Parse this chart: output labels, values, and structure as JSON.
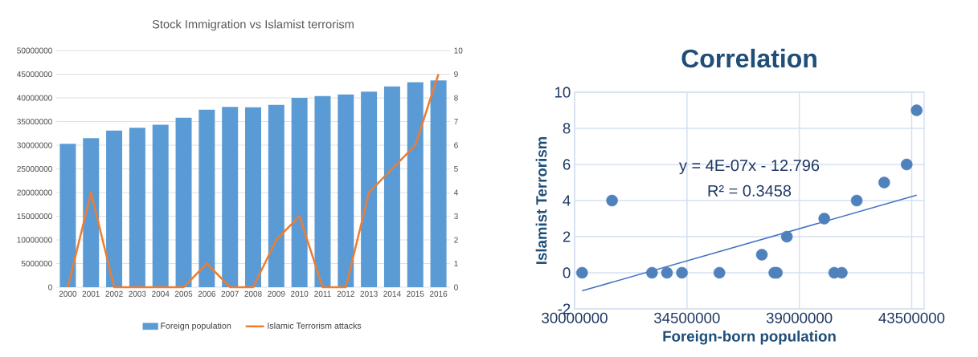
{
  "chart_data": [
    {
      "type": "bar",
      "title": "Stock Immigration vs Islamist terrorism",
      "categories": [
        "2000",
        "2001",
        "2002",
        "2003",
        "2004",
        "2005",
        "2006",
        "2007",
        "2008",
        "2009",
        "2010",
        "2011",
        "2012",
        "2013",
        "2014",
        "2015",
        "2016"
      ],
      "series": [
        {
          "name": "Foreign population",
          "color": "#5b9bd5",
          "values": [
            30300000,
            31500000,
            33100000,
            33700000,
            34300000,
            35800000,
            37500000,
            38100000,
            38000000,
            38500000,
            40000000,
            40400000,
            40700000,
            41300000,
            42400000,
            43300000,
            43700000
          ]
        },
        {
          "name": "Islamic Terrorism attacks",
          "type": "line",
          "axis": "y2",
          "color": "#ed7d31",
          "values": [
            0,
            4,
            0,
            0,
            0,
            0,
            1,
            0,
            0,
            2,
            3,
            0,
            0,
            4,
            5,
            6,
            9
          ]
        }
      ],
      "ylim": [
        0,
        50000000
      ],
      "yticks": [
        0,
        5000000,
        10000000,
        15000000,
        20000000,
        25000000,
        30000000,
        35000000,
        40000000,
        45000000,
        50000000
      ],
      "y2lim": [
        0,
        10
      ],
      "y2ticks": [
        0,
        1,
        2,
        3,
        4,
        5,
        6,
        7,
        8,
        9,
        10
      ],
      "grid": "y",
      "legend": "bottom"
    },
    {
      "type": "scatter",
      "title": "Correlation",
      "xlabel": "Foreign-born population",
      "ylabel": "Islamist Terrorism",
      "series": [
        {
          "color": "#4f81bd",
          "marker": "circle",
          "x": [
            30300000,
            31500000,
            33100000,
            33700000,
            34300000,
            35800000,
            37500000,
            38100000,
            38000000,
            38500000,
            40000000,
            40400000,
            40700000,
            41300000,
            42400000,
            43300000,
            43700000
          ],
          "values": [
            0,
            4,
            0,
            0,
            0,
            0,
            1,
            0,
            0,
            2,
            3,
            0,
            0,
            4,
            5,
            6,
            9
          ]
        },
        {
          "type": "line",
          "color": "#4472c4",
          "x": [
            30300000,
            43700000
          ],
          "values": [
            -1.0,
            4.3
          ]
        }
      ],
      "xlim": [
        30000000,
        44000000
      ],
      "xticks": [
        30000000,
        34500000,
        39000000,
        43500000
      ],
      "ylim": [
        -2,
        10
      ],
      "yticks": [
        -2,
        0,
        2,
        4,
        6,
        8,
        10
      ],
      "grid": true,
      "annotations": [
        "y = 4E-07x - 12.796",
        "R² = 0.3458"
      ]
    }
  ]
}
